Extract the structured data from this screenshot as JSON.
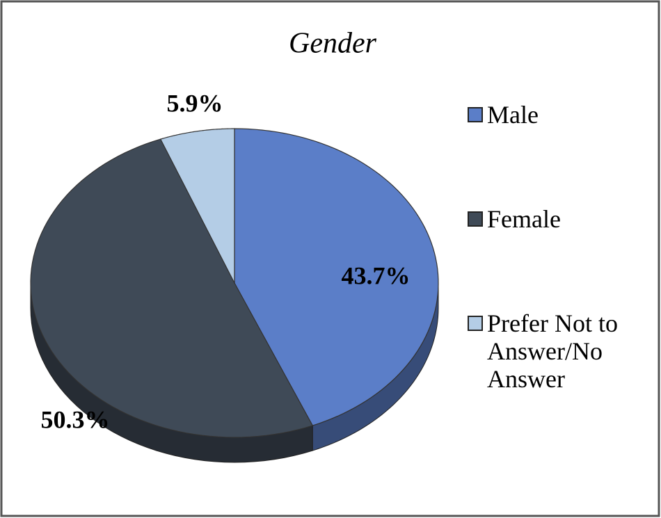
{
  "chart_data": {
    "type": "pie",
    "title": "Gender",
    "categories": [
      "Male",
      "Female",
      "Prefer Not to Answer/No Answer"
    ],
    "values": [
      43.7,
      50.3,
      5.9
    ],
    "value_labels": [
      "43.7%",
      "50.3%",
      "5.9%"
    ],
    "colors": [
      "#5b7ec8",
      "#3f4a57",
      "#b4cde6"
    ],
    "legend": "right"
  }
}
